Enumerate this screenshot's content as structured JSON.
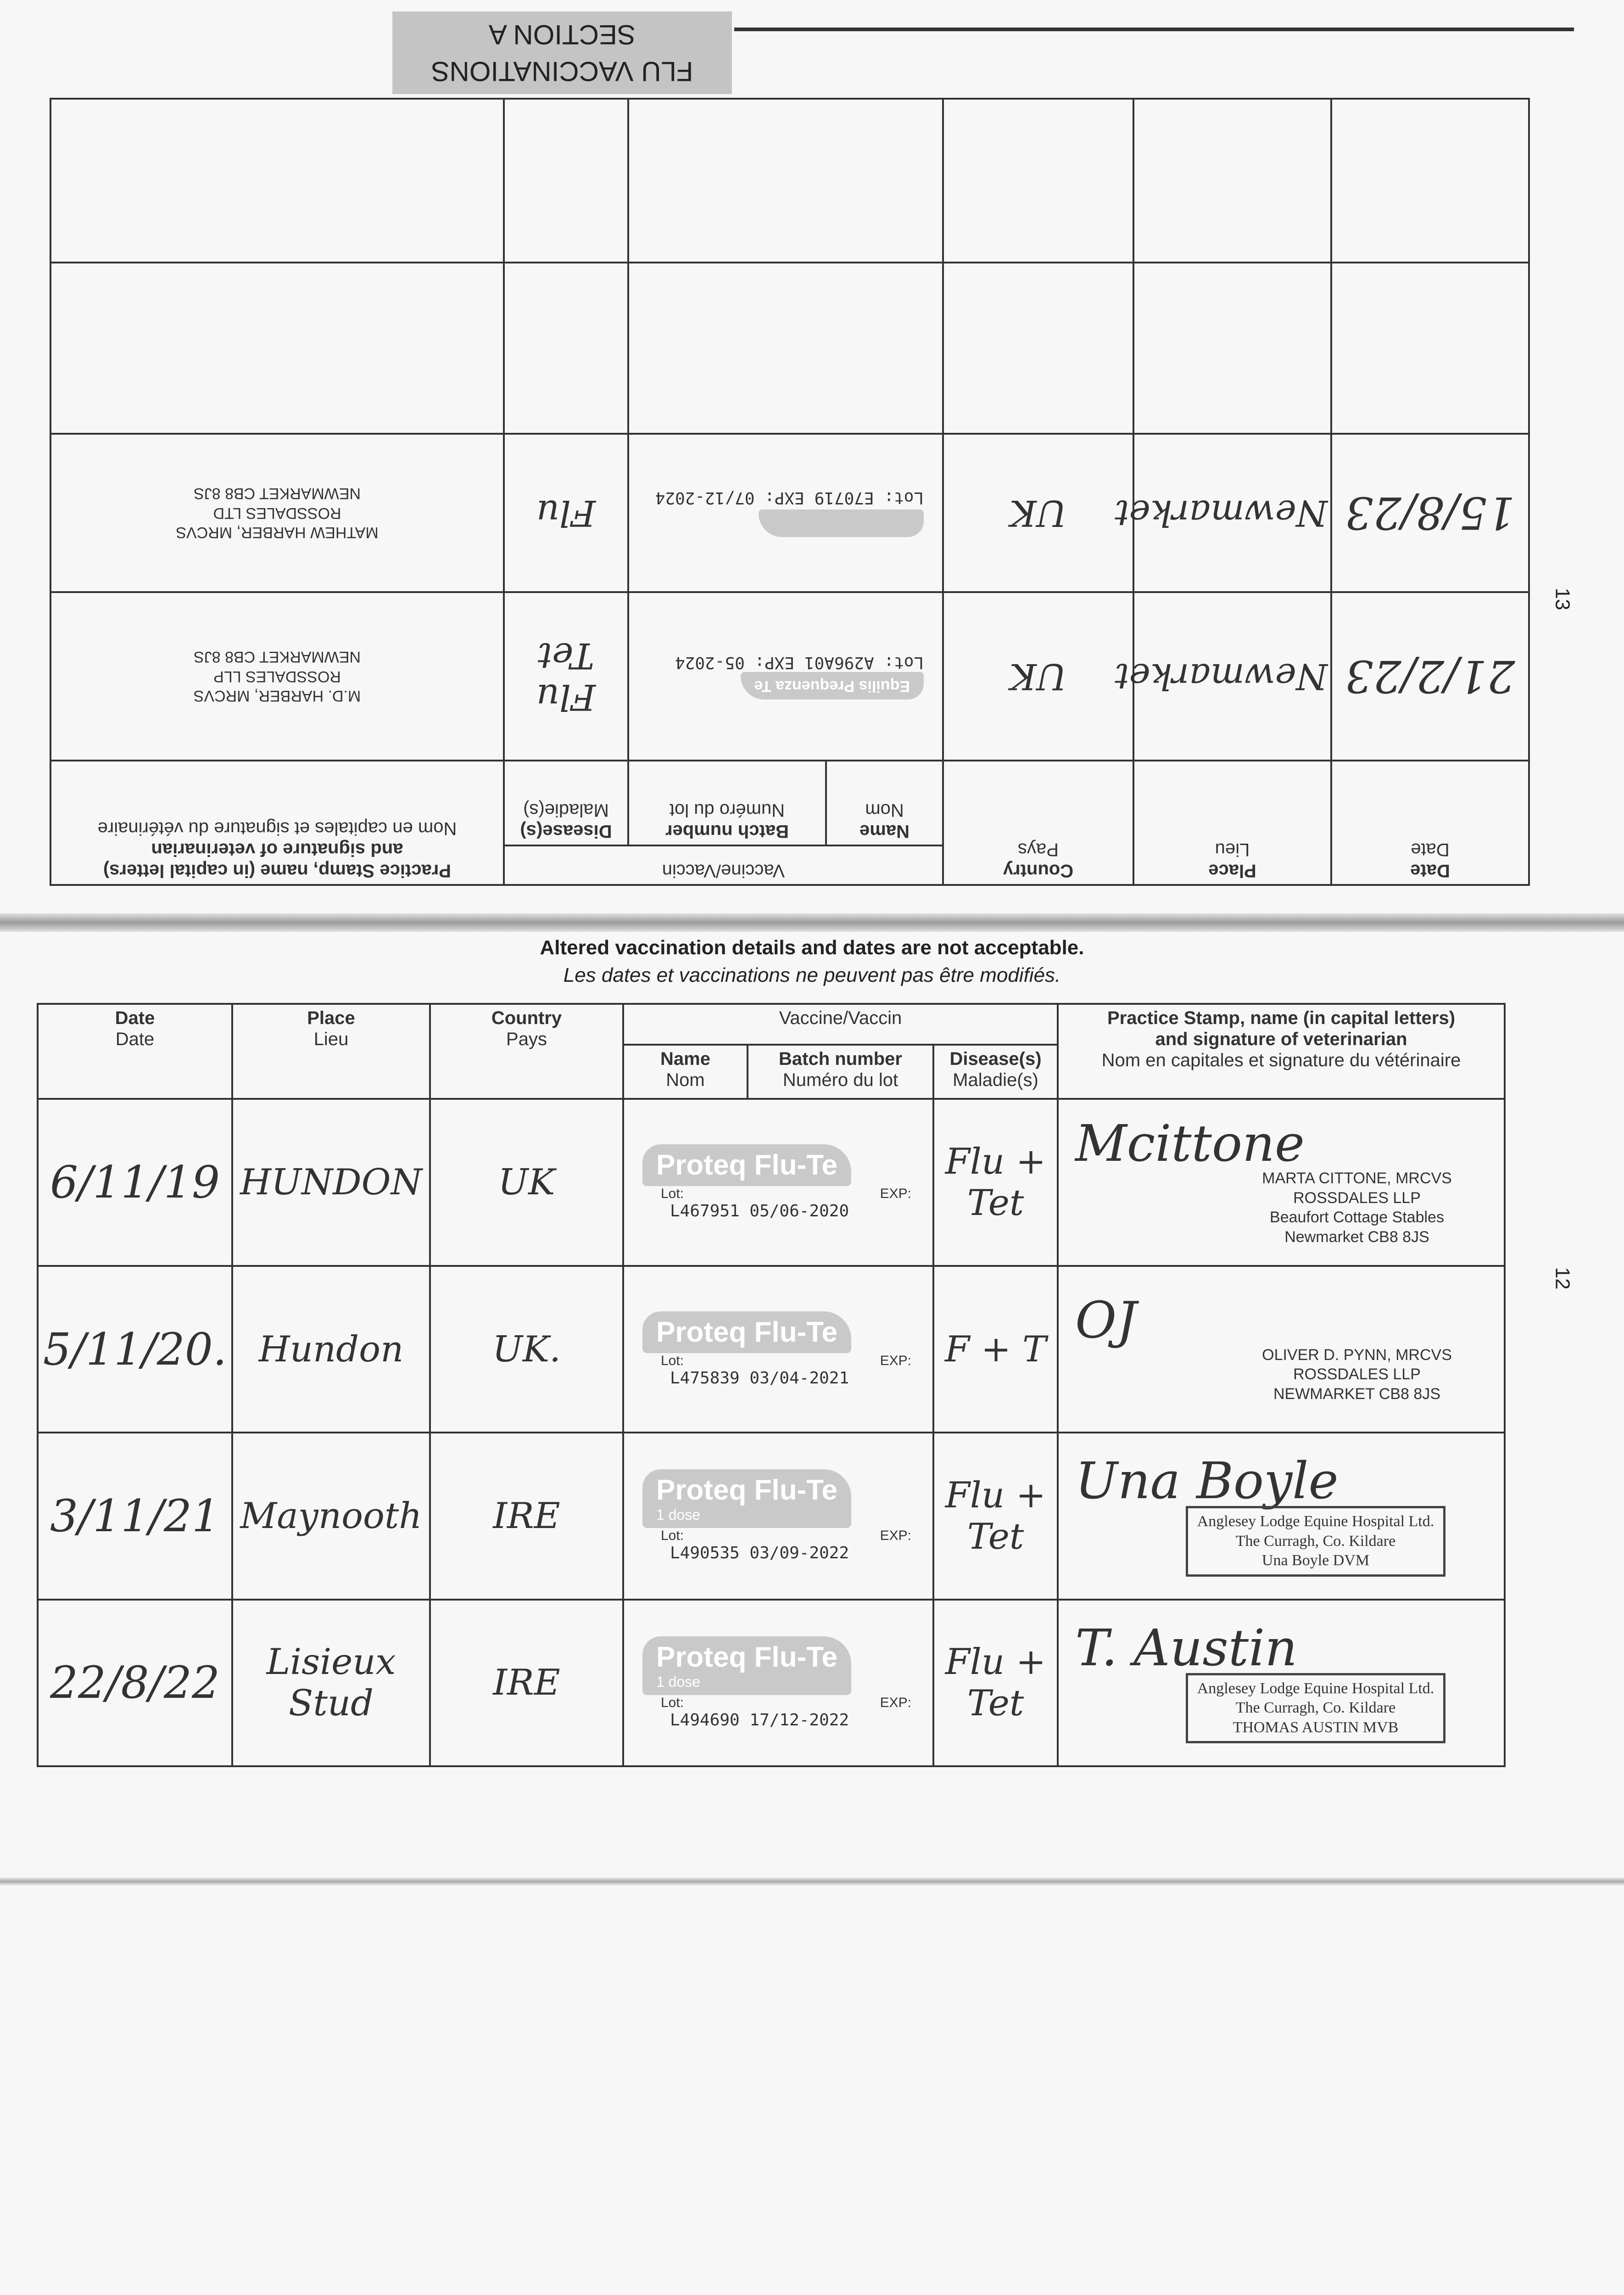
{
  "upper_page": {
    "section_title": "FLU VACCINATIONS",
    "section_subtitle": "SECTION A",
    "page_number": "13",
    "headers": {
      "date": [
        "Date",
        "Date"
      ],
      "place": [
        "Place",
        "Lieu"
      ],
      "country": [
        "Country",
        "Pays"
      ],
      "vaccine": "Vaccine/Vaccin",
      "name": [
        "Name",
        "Nom"
      ],
      "batch": [
        "Batch number",
        "Numéro du lot"
      ],
      "disease": [
        "Disease(s)",
        "Maladie(s)"
      ],
      "stamp": [
        "Practice Stamp, name (in capital letters)",
        "and signature of veterinarian",
        "Nom en capitales et signature du vétérinaire"
      ]
    },
    "rows": [
      {
        "date": "21/2/23",
        "place": "Newmarket",
        "country": "UK",
        "vaccine_label": "Equilis Prequenza Te",
        "lot": "A296A01",
        "exp": "05-2024",
        "lot_label": "Lot:",
        "exp_label": "EXP:",
        "disease": "Flu Tet",
        "stamp": [
          "M.D. HARBER, MRCVS",
          "ROSSDALES LLP",
          "NEWMARKET CB8 8JS"
        ]
      },
      {
        "date": "15/8/23",
        "place": "Newmarket",
        "country": "UK",
        "vaccine_label": "",
        "lot": "E70719",
        "exp": "07/12-2024",
        "lot_label": "Lot:",
        "exp_label": "EXP:",
        "disease": "Flu",
        "stamp": [
          "MATHEW HARBER, MRCVS",
          "ROSSDALES LTD",
          "NEWMARKET CB8 8JS"
        ]
      }
    ]
  },
  "notice": {
    "en": "Altered vaccination details and dates are not acceptable.",
    "fr": "Les dates et vaccinations ne peuvent pas être modifiés."
  },
  "lower_page": {
    "page_number": "12",
    "headers": {
      "date": [
        "Date",
        "Date"
      ],
      "place": [
        "Place",
        "Lieu"
      ],
      "country": [
        "Country",
        "Pays"
      ],
      "vaccine": "Vaccine/Vaccin",
      "name": [
        "Name",
        "Nom"
      ],
      "batch": [
        "Batch number",
        "Numéro du lot"
      ],
      "disease": [
        "Disease(s)",
        "Maladie(s)"
      ],
      "stamp": [
        "Practice Stamp, name (in capital letters)",
        "and signature of veterinarian",
        "Nom en capitales et signature du vétérinaire"
      ]
    },
    "rows": [
      {
        "date": "6/11/19",
        "place": "HUNDON",
        "country": "UK",
        "vaccine_brand": "Proteq",
        "vaccine_product": "Flu-Te",
        "dose": "",
        "lot_label": "Lot:",
        "exp_label": "EXP:",
        "lot": "L467951",
        "exp": "05/06-2020",
        "disease": "Flu + Tet",
        "signature": "Mcittone",
        "stamp": [
          "MARTA CITTONE, MRCVS",
          "ROSSDALES LLP",
          "Beaufort Cottage Stables",
          "Newmarket CB8 8JS"
        ]
      },
      {
        "date": "5/11/20.",
        "place": "Hundon",
        "country": "UK.",
        "vaccine_brand": "Proteq",
        "vaccine_product": "Flu-Te",
        "dose": "",
        "lot_label": "Lot:",
        "exp_label": "EXP:",
        "lot": "L475839",
        "exp": "03/04-2021",
        "disease": "F + T",
        "signature": "OJ",
        "stamp": [
          "OLIVER D. PYNN, MRCVS",
          "ROSSDALES LLP",
          "NEWMARKET CB8 8JS"
        ]
      },
      {
        "date": "3/11/21",
        "place": "Maynooth",
        "country": "IRE",
        "vaccine_brand": "Proteq",
        "vaccine_product": "Flu-Te",
        "dose": "1 dose",
        "lot_label": "Lot:",
        "exp_label": "EXP:",
        "lot": "L490535",
        "exp": "03/09-2022",
        "disease": "Flu + Tet",
        "signature": "Una Boyle",
        "stamp": [
          "Anglesey Lodge Equine Hospital Ltd.",
          "The Curragh, Co. Kildare",
          "Una Boyle DVM"
        ]
      },
      {
        "date": "22/8/22",
        "place": "Lisieux Stud",
        "country": "IRE",
        "vaccine_brand": "Proteq",
        "vaccine_product": "Flu-Te",
        "dose": "1 dose",
        "lot_label": "Lot:",
        "exp_label": "EXP:",
        "lot": "L494690",
        "exp": "17/12-2022",
        "disease": "Flu + Tet",
        "signature": "T. Austin",
        "stamp": [
          "Anglesey Lodge Equine Hospital Ltd.",
          "The Curragh, Co. Kildare",
          "THOMAS AUSTIN MVB"
        ]
      }
    ]
  },
  "colors": {
    "paper": "#f7f7f7",
    "ink": "#333333",
    "label_gray": "#c9c9c9",
    "title_box": "#c4c4c4"
  }
}
